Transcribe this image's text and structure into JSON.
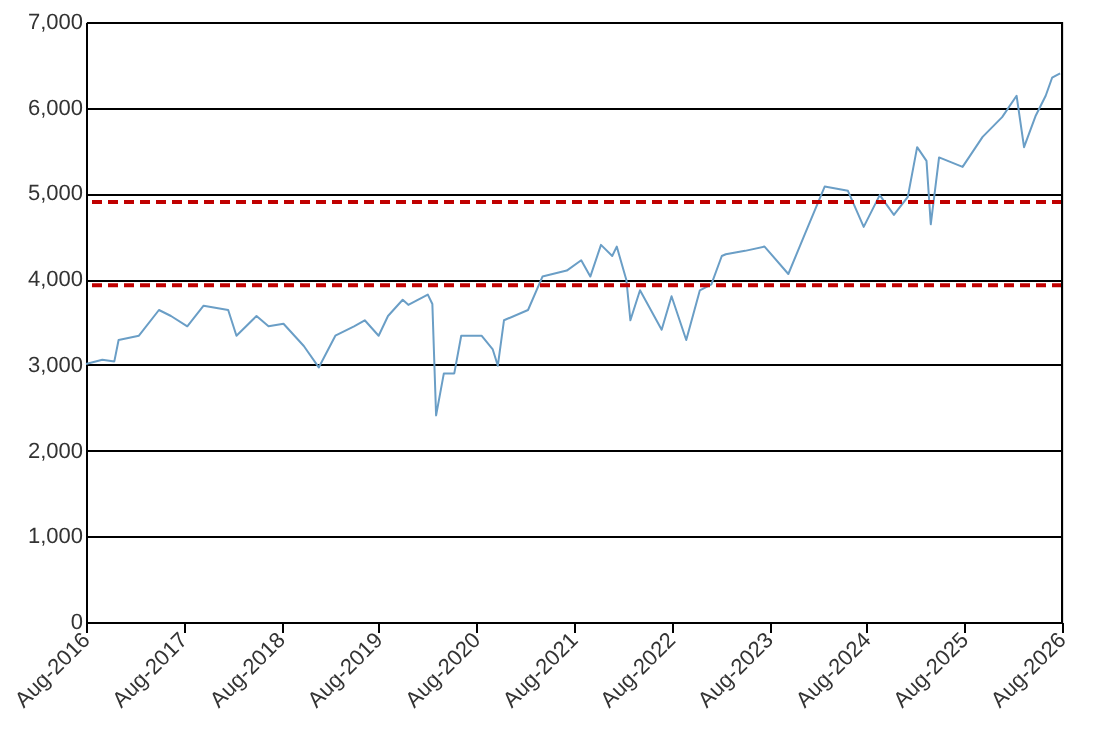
{
  "chart_data": {
    "type": "line",
    "x": [
      "2016-08-01",
      "2016-10-01",
      "2016-11-15",
      "2016-12-01",
      "2017-02-15",
      "2017-05-01",
      "2017-06-15",
      "2017-08-15",
      "2017-10-15",
      "2018-01-15",
      "2018-02-15",
      "2018-05-01",
      "2018-06-15",
      "2018-08-10",
      "2018-10-25",
      "2018-12-20",
      "2019-02-20",
      "2019-05-01",
      "2019-06-10",
      "2019-08-01",
      "2019-09-05",
      "2019-10-30",
      "2019-11-20",
      "2020-02-01",
      "2020-02-18",
      "2020-03-03",
      "2020-04-01",
      "2020-05-10",
      "2020-06-05",
      "2020-08-20",
      "2020-10-01",
      "2020-10-20",
      "2020-11-12",
      "2021-02-10",
      "2021-04-05",
      "2021-07-05",
      "2021-08-28",
      "2021-10-01",
      "2021-11-10",
      "2021-12-22",
      "2022-01-08",
      "2022-02-13",
      "2022-02-28",
      "2022-04-05",
      "2022-06-25",
      "2022-08-01",
      "2022-09-25",
      "2022-11-15",
      "2022-12-28",
      "2023-02-05",
      "2023-02-20",
      "2023-05-03",
      "2023-07-15",
      "2023-10-12",
      "2023-12-12",
      "2024-02-25",
      "2024-05-22",
      "2024-07-20",
      "2024-09-18",
      "2024-11-10",
      "2025-01-01",
      "2025-02-05",
      "2025-03-12",
      "2025-03-28",
      "2025-04-28",
      "2025-07-25",
      "2025-10-08",
      "2025-12-20",
      "2026-02-12",
      "2026-03-12",
      "2026-04-25",
      "2026-06-01",
      "2026-06-25",
      "2026-07-25"
    ],
    "series": [
      {
        "color": "#6a9ec6",
        "values": [
          3010,
          3060,
          3040,
          3290,
          3340,
          3640,
          3570,
          3450,
          3690,
          3640,
          3340,
          3570,
          3450,
          3480,
          3220,
          2970,
          3340,
          3450,
          3520,
          3340,
          3570,
          3760,
          3700,
          3820,
          3710,
          2410,
          2900,
          2900,
          3340,
          3340,
          3180,
          2990,
          3520,
          3640,
          4030,
          4100,
          4220,
          4030,
          4400,
          4270,
          4380,
          3990,
          3520,
          3870,
          3410,
          3800,
          3290,
          3870,
          3940,
          4270,
          4290,
          4330,
          4380,
          4060,
          4520,
          5080,
          5030,
          4610,
          4980,
          4750,
          4960,
          5540,
          5380,
          4640,
          5420,
          5310,
          5660,
          5890,
          6140,
          5540,
          5910,
          6140,
          6350,
          6400
        ]
      }
    ],
    "xlim": [
      "2016-08-01",
      "2026-08-01"
    ],
    "xticks": [
      {
        "value": "2016-08-01",
        "label": "Aug-2016"
      },
      {
        "value": "2017-08-01",
        "label": "Aug-2017"
      },
      {
        "value": "2018-08-01",
        "label": "Aug-2018"
      },
      {
        "value": "2019-08-01",
        "label": "Aug-2019"
      },
      {
        "value": "2020-08-01",
        "label": "Aug-2020"
      },
      {
        "value": "2021-08-01",
        "label": "Aug-2021"
      },
      {
        "value": "2022-08-01",
        "label": "Aug-2022"
      },
      {
        "value": "2023-08-01",
        "label": "Aug-2023"
      },
      {
        "value": "2024-08-01",
        "label": "Aug-2024"
      },
      {
        "value": "2025-08-01",
        "label": "Aug-2025"
      },
      {
        "value": "2026-08-01",
        "label": "Aug-2026"
      }
    ],
    "ylim": [
      0,
      7000
    ],
    "yticks": [
      {
        "value": 0,
        "label": "0"
      },
      {
        "value": 1000,
        "label": "1,000"
      },
      {
        "value": 2000,
        "label": "2,000"
      },
      {
        "value": 3000,
        "label": "3,000"
      },
      {
        "value": 4000,
        "label": "4,000"
      },
      {
        "value": 5000,
        "label": "5,000"
      },
      {
        "value": 6000,
        "label": "6,000"
      },
      {
        "value": 7000,
        "label": "7,000"
      }
    ],
    "grid": "y",
    "ref_lines": [
      {
        "axis": "y",
        "value": 4900,
        "color": "#c00000",
        "line_style": "dashed"
      },
      {
        "axis": "y",
        "value": 3930,
        "color": "#c00000",
        "line_style": "dashed"
      }
    ]
  }
}
